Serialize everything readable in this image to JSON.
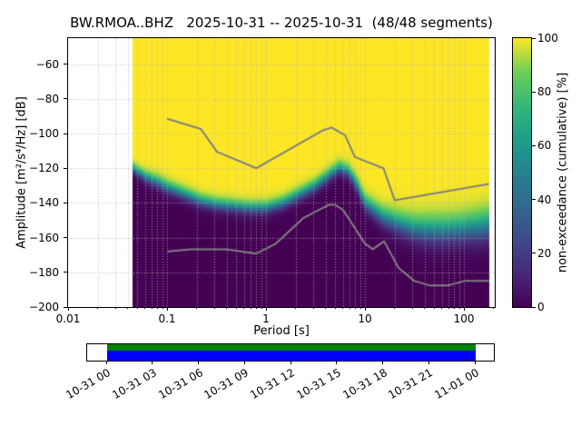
{
  "title": "BW.RMOA..BHZ   2025-10-31 -- 2025-10-31  (48/48 segments)",
  "axes": {
    "xlabel": "Period [s]",
    "ylabel": "Amplitude [m²/s⁴/Hz] [dB]",
    "xlim": [
      0.01,
      205
    ],
    "ylim": [
      -200,
      -45
    ],
    "x_ticks": [
      {
        "value": 0.01,
        "label": "0.01"
      },
      {
        "value": 0.1,
        "label": "0.1"
      },
      {
        "value": 1,
        "label": "1"
      },
      {
        "value": 10,
        "label": "10"
      },
      {
        "value": 100,
        "label": "100"
      }
    ],
    "y_ticks": [
      {
        "value": -60,
        "label": "−60"
      },
      {
        "value": -80,
        "label": "−80"
      },
      {
        "value": -100,
        "label": "−100"
      },
      {
        "value": -120,
        "label": "−120"
      },
      {
        "value": -140,
        "label": "−140"
      },
      {
        "value": -160,
        "label": "−160"
      },
      {
        "value": -180,
        "label": "−180"
      },
      {
        "value": -200,
        "label": "−200"
      }
    ]
  },
  "colorbar": {
    "label": "non-exceedance (cumulative) [%]",
    "ticks": [
      {
        "value": 0,
        "label": "0"
      },
      {
        "value": 20,
        "label": "20"
      },
      {
        "value": 40,
        "label": "40"
      },
      {
        "value": 60,
        "label": "60"
      },
      {
        "value": 80,
        "label": "80"
      },
      {
        "value": 100,
        "label": "100"
      }
    ],
    "colormap_stops": [
      [
        0,
        "#440154"
      ],
      [
        0.125,
        "#482878"
      ],
      [
        0.25,
        "#3e4a89"
      ],
      [
        0.375,
        "#31688e"
      ],
      [
        0.5,
        "#26828e"
      ],
      [
        0.625,
        "#1f9e89"
      ],
      [
        0.75,
        "#35b779"
      ],
      [
        0.875,
        "#6ece58"
      ],
      [
        1,
        "#fde725"
      ]
    ]
  },
  "chart_data": {
    "type": "heatmap",
    "title": "BW.RMOA..BHZ   2025-10-31 -- 2025-10-31  (48/48 segments)",
    "xlabel": "Period [s]",
    "ylabel": "Amplitude [m²/s⁴/Hz] [dB]",
    "zlabel": "non-exceedance (cumulative) [%]",
    "x_scale": "log",
    "xlim": [
      0.01,
      205
    ],
    "ylim": [
      -200,
      -45
    ],
    "zlim": [
      0,
      100
    ],
    "segments_used": 48,
    "segments_total": 48,
    "period_range_s": [
      0.045,
      179
    ],
    "distribution": {
      "comment": "cumulative PSD distribution per period: median level and half-width of the transition band, dB",
      "periods_s": [
        0.045,
        0.06,
        0.08,
        0.1,
        0.15,
        0.22,
        0.32,
        0.46,
        0.68,
        1.0,
        1.5,
        2.2,
        3.2,
        4.6,
        5.5,
        6.8,
        8.2,
        10,
        15,
        22,
        32,
        46,
        68,
        100,
        150,
        179
      ],
      "median_db": [
        -120,
        -125,
        -128,
        -131,
        -135,
        -139,
        -141,
        -142,
        -143,
        -143,
        -140,
        -135,
        -130,
        -123,
        -120,
        -122,
        -129,
        -140,
        -148,
        -152,
        -155,
        -156,
        -156,
        -155,
        -154,
        -153
      ],
      "spread_db": [
        3,
        3.5,
        4,
        4,
        4,
        4,
        4,
        4,
        4,
        4,
        4,
        4,
        4,
        4,
        4,
        4,
        4.5,
        5,
        6,
        7,
        8,
        9,
        9,
        9,
        10,
        10
      ]
    },
    "noise_models": {
      "high_db": [
        [
          0.1,
          -91.5
        ],
        [
          0.22,
          -97.4
        ],
        [
          0.32,
          -110.5
        ],
        [
          0.8,
          -120.0
        ],
        [
          3.8,
          -98.0
        ],
        [
          4.6,
          -96.5
        ],
        [
          6.3,
          -101.0
        ],
        [
          7.9,
          -113.5
        ],
        [
          15.4,
          -120.0
        ],
        [
          20.0,
          -138.5
        ],
        [
          179.0,
          -129.0
        ]
      ],
      "low_db": [
        [
          0.1,
          -168.0
        ],
        [
          0.17,
          -166.7
        ],
        [
          0.4,
          -166.7
        ],
        [
          0.8,
          -169.2
        ],
        [
          1.24,
          -163.7
        ],
        [
          2.4,
          -148.6
        ],
        [
          4.3,
          -141.1
        ],
        [
          5.0,
          -141.1
        ],
        [
          6.0,
          -144.0
        ],
        [
          10.0,
          -163.4
        ],
        [
          12.0,
          -166.7
        ],
        [
          15.6,
          -162.1
        ],
        [
          21.9,
          -177.5
        ],
        [
          31.6,
          -185.0
        ],
        [
          45.0,
          -187.5
        ],
        [
          70.0,
          -187.5
        ],
        [
          101.0,
          -185.0
        ],
        [
          179.0,
          -185.0
        ]
      ]
    },
    "noise_model_color": "#808080"
  },
  "timeline": {
    "labels": [
      "10-31 00",
      "10-31 03",
      "10-31 06",
      "10-31 09",
      "10-31 12",
      "10-31 15",
      "10-31 18",
      "10-31 21",
      "11-01 00"
    ],
    "coverage_color_top": "#008000",
    "coverage_color_bottom": "#0000ff"
  }
}
